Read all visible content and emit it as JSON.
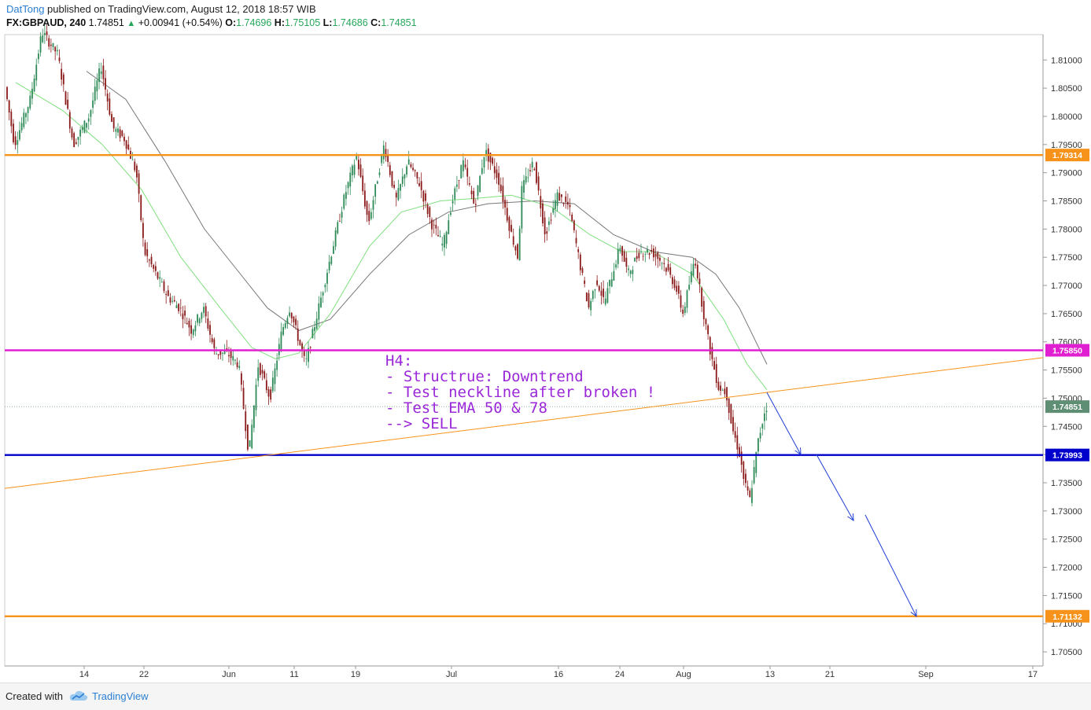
{
  "header": {
    "author": "DatTong",
    "published_text": " published on TradingView.com, August 12, 2018 18:57 WIB",
    "symbol": "FX:GBPAUD, 240",
    "last": "1.74851",
    "change": "+0.00941 (+0.54%)",
    "o_label": "O:",
    "o_value": "1.74696",
    "h_label": "H:",
    "h_value": "1.75105",
    "l_label": "L:",
    "l_value": "1.74686",
    "c_label": "C:",
    "c_value": "1.74851"
  },
  "footer": {
    "created_with": "Created with",
    "brand": "TradingView"
  },
  "colors": {
    "bull": "#2e8b57",
    "bear": "#8b1a1a",
    "ema50": "#7ee07e",
    "ema78": "#777777",
    "orange": "#f7931a",
    "magenta": "#e020d0",
    "blue": "#0000cc",
    "annotation": "#9a28d8"
  },
  "chart_data": {
    "type": "candlestick",
    "ylim": [
      1.7025,
      1.8145
    ],
    "y_ticks": [
      "1.81000",
      "1.80500",
      "1.80000",
      "1.79500",
      "1.79000",
      "1.78500",
      "1.78000",
      "1.77500",
      "1.77000",
      "1.76500",
      "1.76000",
      "1.75500",
      "1.75000",
      "1.74500",
      "1.74000",
      "1.73500",
      "1.73000",
      "1.72500",
      "1.72000",
      "1.71500",
      "1.71000",
      "1.70500"
    ],
    "x_ticks": [
      "14",
      "22",
      "Jun",
      "11",
      "19",
      "Jul",
      "16",
      "24",
      "Aug",
      "13",
      "21",
      "Sep",
      "17"
    ],
    "horizontal_levels": [
      {
        "label": "1.79314",
        "value": 1.79314,
        "color": "#f7931a"
      },
      {
        "label": "1.75850",
        "value": 1.7585,
        "color": "#e020d0"
      },
      {
        "label": "1.74851",
        "value": 1.74851,
        "color": "#5e8f75"
      },
      {
        "label": "1.73993",
        "value": 1.73993,
        "color": "#0000cc"
      },
      {
        "label": "1.71132",
        "value": 1.71132,
        "color": "#f7931a"
      }
    ],
    "trendline": {
      "from": [
        0,
        1.734
      ],
      "to": [
        1,
        1.7572
      ]
    },
    "anchors": [
      [
        0,
        1.812
      ],
      [
        20,
        1.795
      ],
      [
        40,
        1.803
      ],
      [
        55,
        1.815
      ],
      [
        75,
        1.811
      ],
      [
        95,
        1.795
      ],
      [
        115,
        1.8
      ],
      [
        130,
        1.809
      ],
      [
        145,
        1.798
      ],
      [
        160,
        1.796
      ],
      [
        175,
        1.79
      ],
      [
        185,
        1.776
      ],
      [
        200,
        1.772
      ],
      [
        215,
        1.768
      ],
      [
        230,
        1.766
      ],
      [
        245,
        1.762
      ],
      [
        260,
        1.766
      ],
      [
        275,
        1.758
      ],
      [
        290,
        1.758
      ],
      [
        305,
        1.756
      ],
      [
        318,
        1.74
      ],
      [
        330,
        1.756
      ],
      [
        345,
        1.75
      ],
      [
        360,
        1.762
      ],
      [
        370,
        1.766
      ],
      [
        390,
        1.756
      ],
      [
        400,
        1.762
      ],
      [
        420,
        1.774
      ],
      [
        440,
        1.786
      ],
      [
        455,
        1.793
      ],
      [
        470,
        1.781
      ],
      [
        490,
        1.795
      ],
      [
        505,
        1.785
      ],
      [
        520,
        1.792
      ],
      [
        535,
        1.788
      ],
      [
        550,
        1.781
      ],
      [
        565,
        1.777
      ],
      [
        575,
        1.784
      ],
      [
        590,
        1.792
      ],
      [
        605,
        1.784
      ],
      [
        618,
        1.794
      ],
      [
        635,
        1.789
      ],
      [
        650,
        1.78
      ],
      [
        660,
        1.775
      ],
      [
        665,
        1.787
      ],
      [
        680,
        1.792
      ],
      [
        695,
        1.779
      ],
      [
        710,
        1.786
      ],
      [
        725,
        1.784
      ],
      [
        740,
        1.773
      ],
      [
        750,
        1.766
      ],
      [
        760,
        1.771
      ],
      [
        770,
        1.767
      ],
      [
        790,
        1.777
      ],
      [
        800,
        1.772
      ],
      [
        815,
        1.776
      ],
      [
        830,
        1.776
      ],
      [
        845,
        1.774
      ],
      [
        860,
        1.77
      ],
      [
        870,
        1.765
      ],
      [
        885,
        1.775
      ],
      [
        895,
        1.766
      ],
      [
        905,
        1.758
      ],
      [
        915,
        1.752
      ],
      [
        925,
        1.751
      ],
      [
        932,
        1.745
      ],
      [
        942,
        1.74
      ],
      [
        948,
        1.735
      ],
      [
        955,
        1.732
      ],
      [
        965,
        1.742
      ],
      [
        975,
        1.7485
      ]
    ],
    "ema50": [
      [
        20,
        1.806
      ],
      [
        80,
        1.801
      ],
      [
        130,
        1.795
      ],
      [
        180,
        1.787
      ],
      [
        230,
        1.775
      ],
      [
        280,
        1.766
      ],
      [
        320,
        1.759
      ],
      [
        350,
        1.757
      ],
      [
        380,
        1.758
      ],
      [
        420,
        1.765
      ],
      [
        470,
        1.777
      ],
      [
        510,
        1.783
      ],
      [
        560,
        1.785
      ],
      [
        610,
        1.7855
      ],
      [
        650,
        1.786
      ],
      [
        700,
        1.784
      ],
      [
        750,
        1.779
      ],
      [
        790,
        1.776
      ],
      [
        830,
        1.776
      ],
      [
        880,
        1.772
      ],
      [
        920,
        1.764
      ],
      [
        950,
        1.756
      ],
      [
        975,
        1.7515
      ]
    ],
    "ema78": [
      [
        110,
        1.808
      ],
      [
        160,
        1.803
      ],
      [
        210,
        1.792
      ],
      [
        260,
        1.78
      ],
      [
        300,
        1.773
      ],
      [
        340,
        1.766
      ],
      [
        380,
        1.762
      ],
      [
        420,
        1.764
      ],
      [
        470,
        1.772
      ],
      [
        520,
        1.779
      ],
      [
        570,
        1.783
      ],
      [
        620,
        1.7845
      ],
      [
        680,
        1.785
      ],
      [
        730,
        1.7845
      ],
      [
        780,
        1.779
      ],
      [
        830,
        1.776
      ],
      [
        880,
        1.775
      ],
      [
        910,
        1.772
      ],
      [
        940,
        1.766
      ],
      [
        975,
        1.756
      ]
    ],
    "projection_arrows": [
      [
        [
          975,
          1.751
        ],
        [
          1018,
          1.74
        ]
      ],
      [
        [
          1038,
          1.74
        ],
        [
          1085,
          1.7283
        ]
      ],
      [
        [
          1100,
          1.7293
        ],
        [
          1165,
          1.7113
        ]
      ]
    ],
    "annotation": [
      "H4:",
      "- Structrue: Downtrend",
      "- Test neckline after broken !",
      "- Test EMA 50 & 78",
      "--> SELL"
    ]
  }
}
